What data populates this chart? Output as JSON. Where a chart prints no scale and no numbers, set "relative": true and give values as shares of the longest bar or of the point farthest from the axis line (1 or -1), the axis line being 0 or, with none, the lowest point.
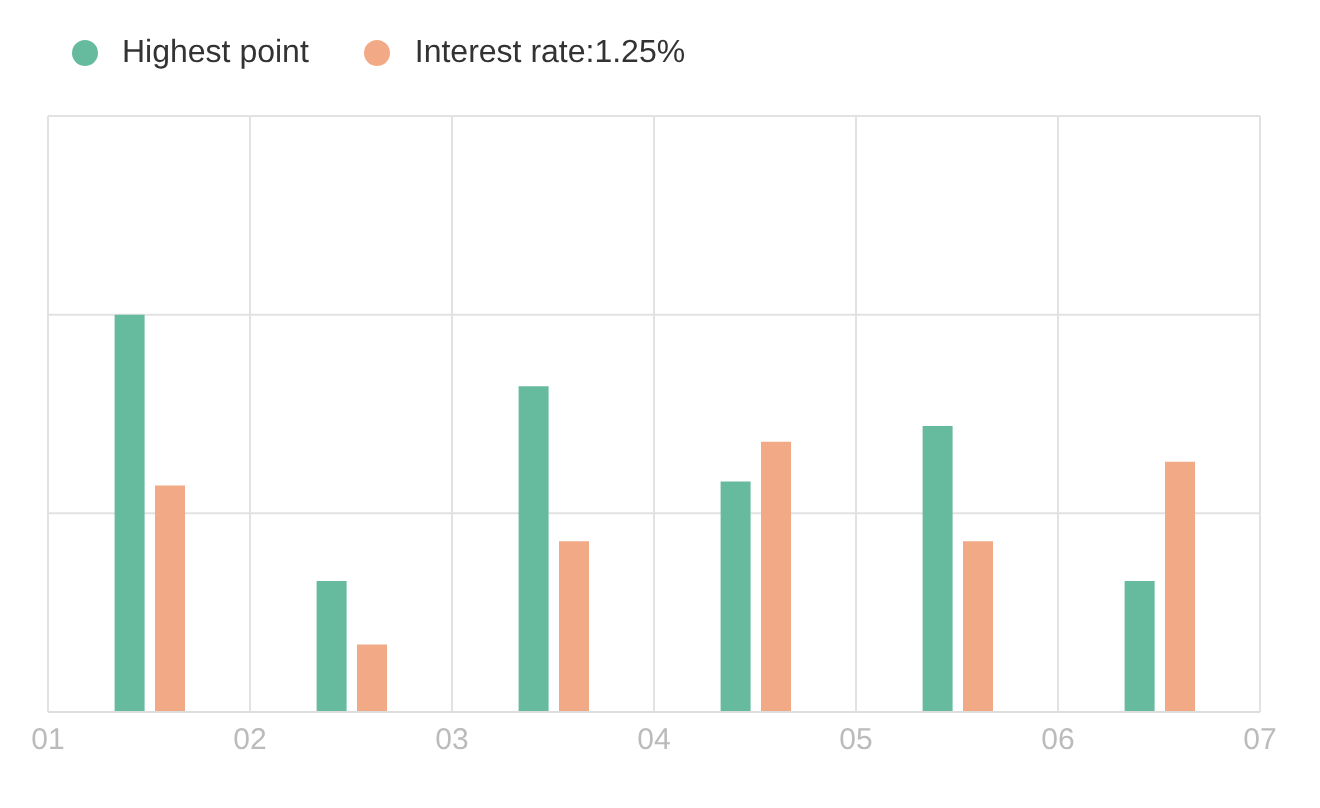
{
  "chart_data": {
    "type": "bar",
    "relative": true,
    "xlim": [
      1,
      7
    ],
    "xticks": [
      {
        "value": 1,
        "label": "01"
      },
      {
        "value": 2,
        "label": "02"
      },
      {
        "value": 3,
        "label": "03"
      },
      {
        "value": 4,
        "label": "04"
      },
      {
        "value": 5,
        "label": "05"
      },
      {
        "value": 6,
        "label": "06"
      },
      {
        "value": 7,
        "label": "07"
      }
    ],
    "series": [
      {
        "name": "Highest point",
        "color": "#66bb9f",
        "x": [
          1.4,
          2.4,
          3.4,
          4.4,
          5.4,
          6.4
        ],
        "values": [
          1,
          0.33,
          0.82,
          0.58,
          0.72,
          0.33
        ]
      },
      {
        "name": "Interest rate:1.25%",
        "color": "#f2a986",
        "x": [
          1.6,
          2.6,
          3.6,
          4.6,
          5.6,
          6.6
        ],
        "values": [
          0.57,
          0.17,
          0.43,
          0.68,
          0.43,
          0.63
        ]
      }
    ],
    "grid": true,
    "legend": "top left"
  }
}
